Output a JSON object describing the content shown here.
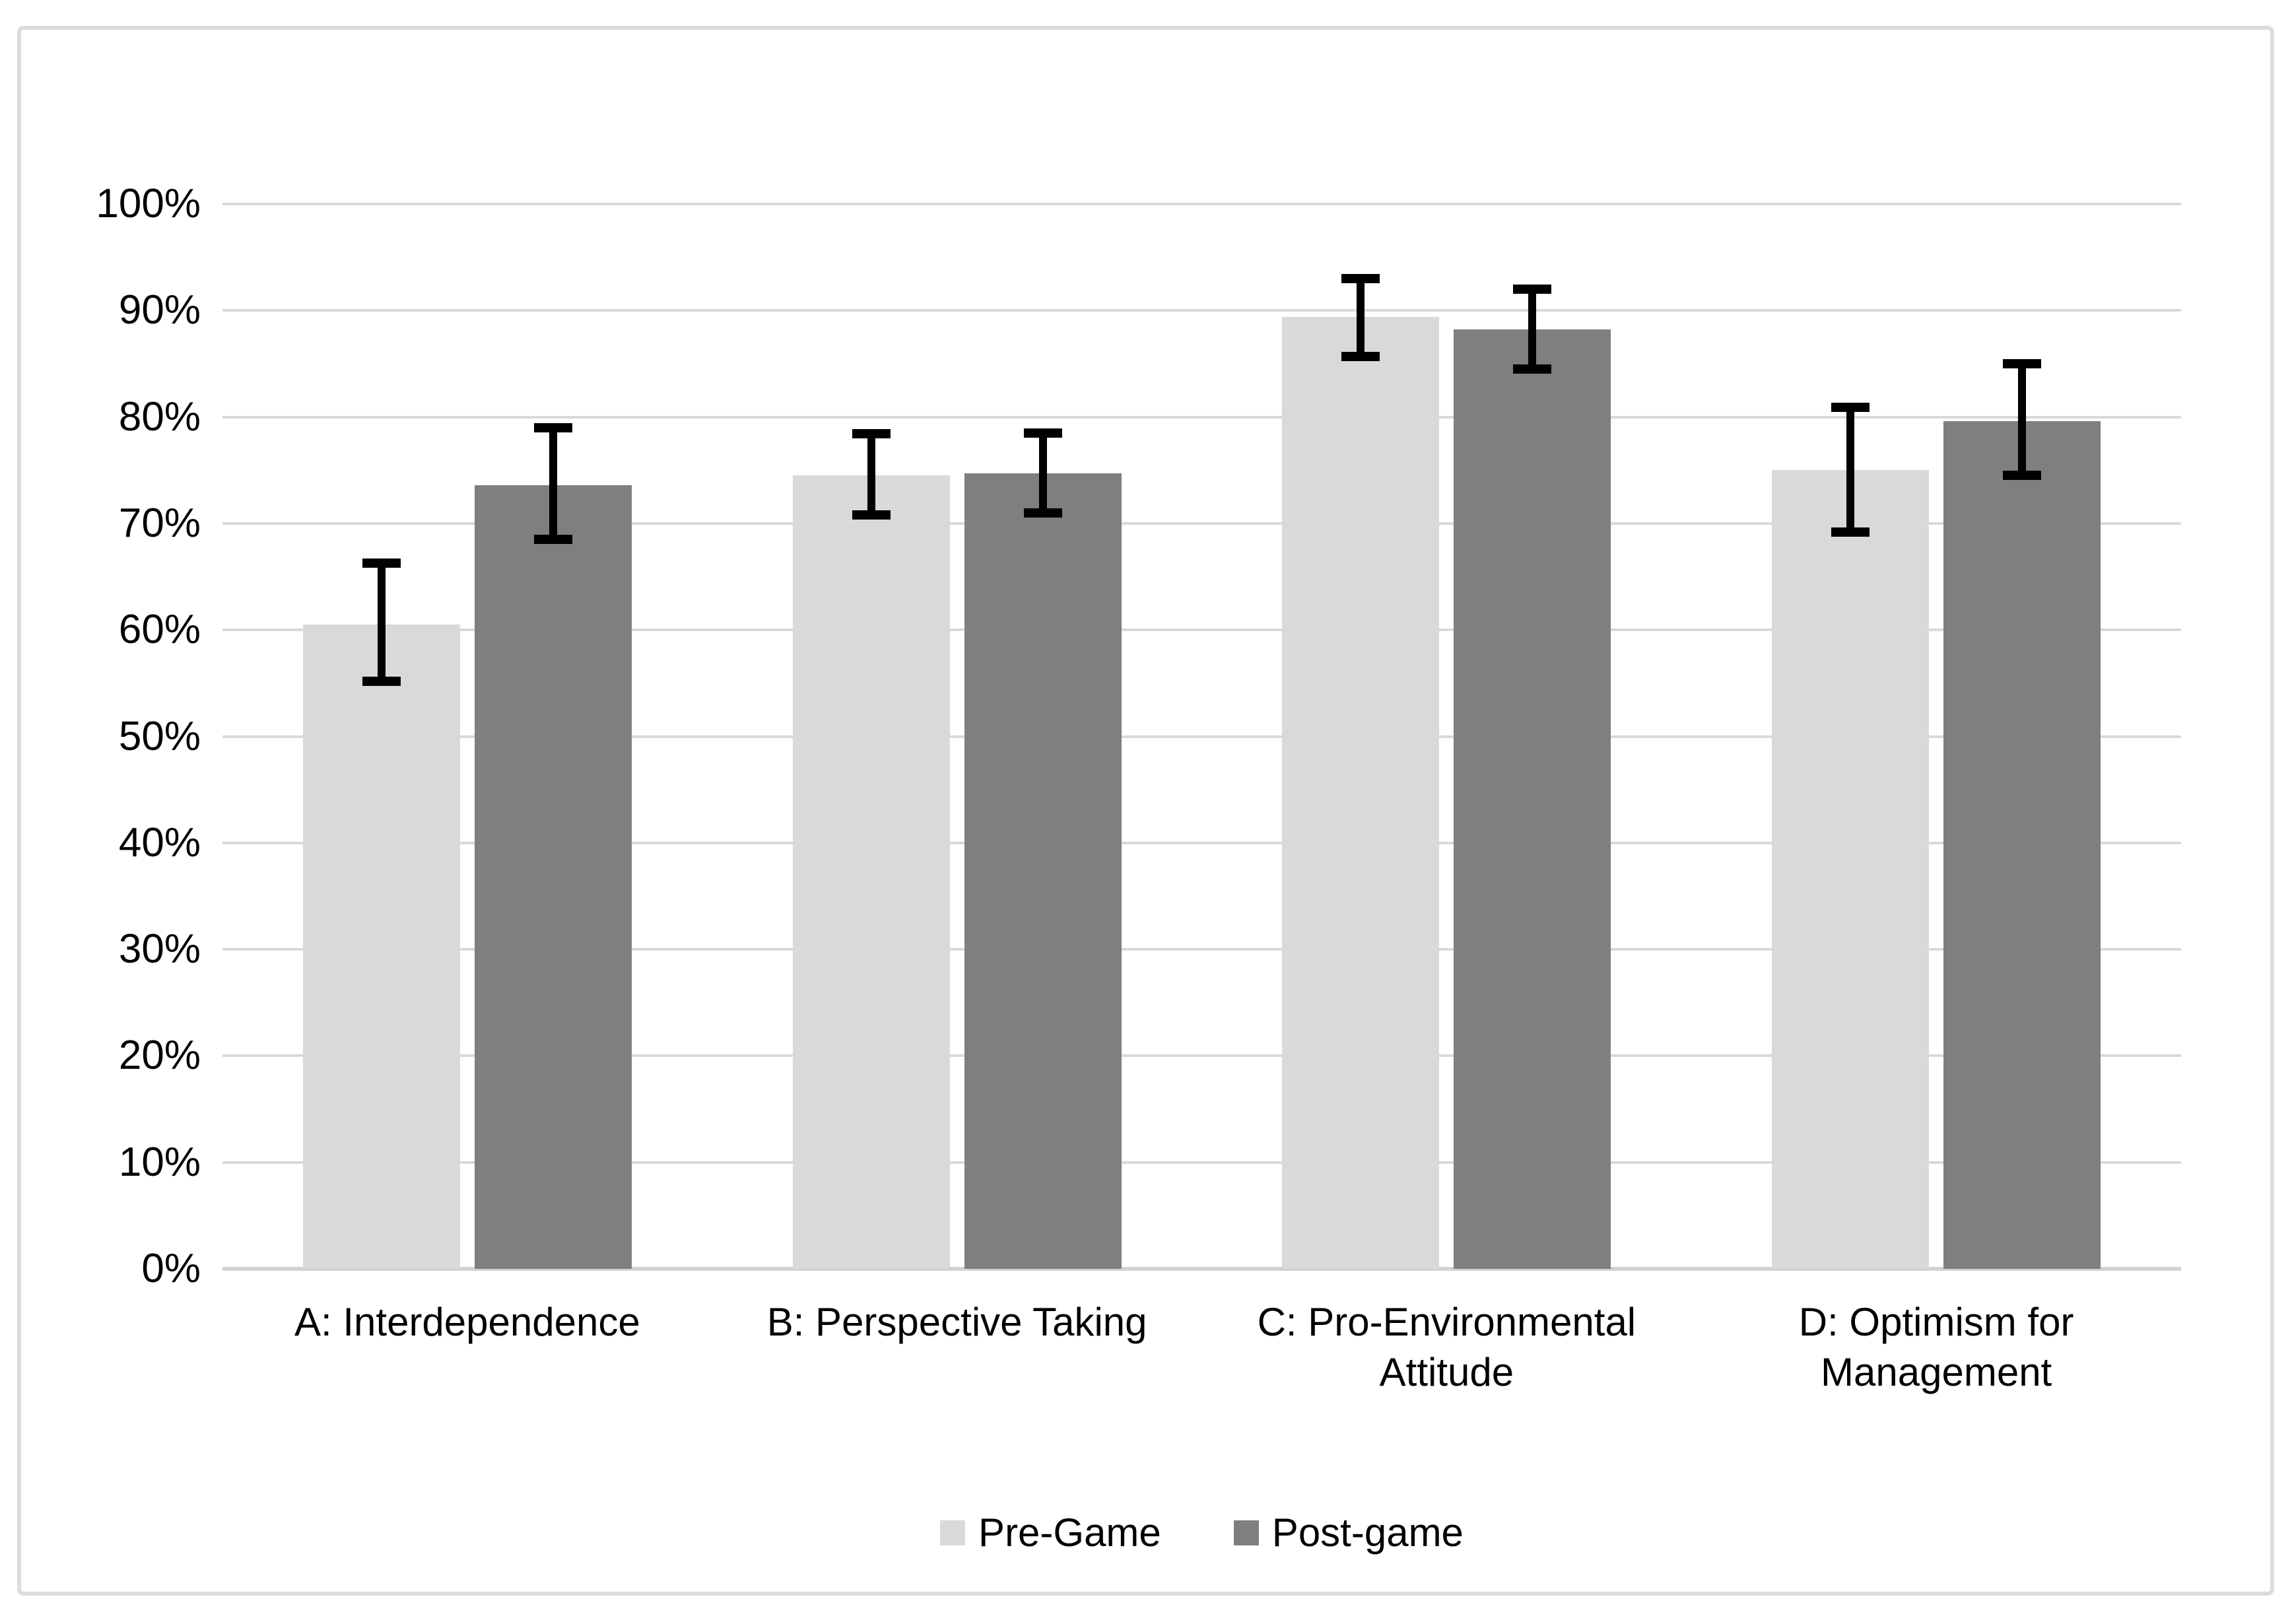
{
  "chart_data": {
    "type": "bar",
    "title": "",
    "xlabel": "",
    "ylabel": "",
    "categories": [
      "A: Interdependence",
      "B: Perspective Taking",
      "C: Pro-Environmental Attitude",
      "D: Optimism for Management"
    ],
    "series": [
      {
        "name": "Pre-Game",
        "color": "#d9d9d9",
        "values": [
          60.5,
          74.5,
          89.4,
          75.0
        ],
        "error_low": [
          55.2,
          70.8,
          85.7,
          69.2
        ],
        "error_high": [
          66.3,
          78.4,
          93.0,
          80.9
        ]
      },
      {
        "name": "Post-game",
        "color": "#7f7f7f",
        "values": [
          73.6,
          74.7,
          88.2,
          79.6
        ],
        "error_low": [
          68.5,
          71.0,
          84.5,
          74.5
        ],
        "error_high": [
          79.0,
          78.5,
          92.0,
          85.0
        ]
      }
    ],
    "y_axis": {
      "min": 0,
      "max": 100,
      "step": 10,
      "tick_format": "percent",
      "tick_labels": [
        "0%",
        "10%",
        "20%",
        "30%",
        "40%",
        "50%",
        "60%",
        "70%",
        "80%",
        "90%",
        "100%"
      ]
    },
    "grid": true,
    "legend_position": "bottom",
    "error_bars": true,
    "style": {
      "gridline_color": "#d9d9d9",
      "axis_line_color": "#d2d2d2",
      "error_bar_color": "#000000",
      "frame_border_color": "#dcdcdc",
      "background_color": "#ffffff",
      "text_color": "#000000"
    }
  }
}
